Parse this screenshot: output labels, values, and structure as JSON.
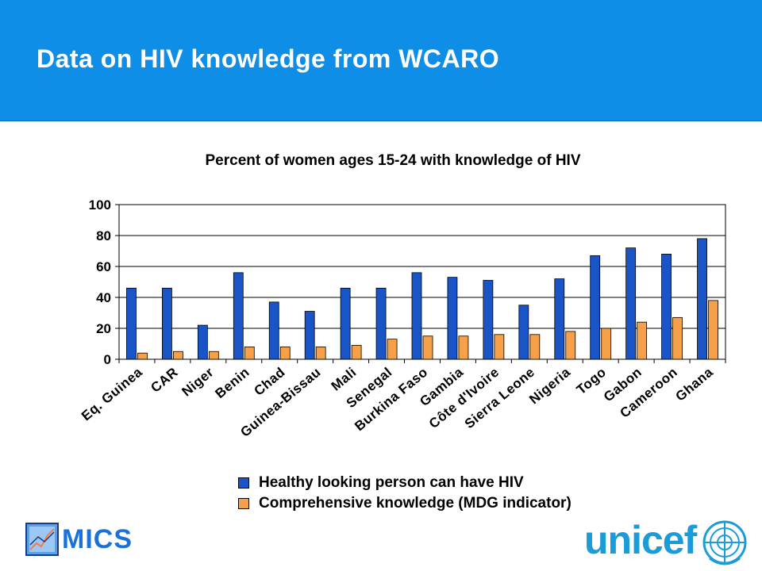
{
  "header": {
    "title": "Data on HIV knowledge from WCARO"
  },
  "colors": {
    "header_bg": "#0f8ee8",
    "series1": "#1a55c8",
    "series2": "#f7a04a",
    "unicef": "#1b9bd8",
    "mics": "#1a72d8"
  },
  "logos": {
    "mics": "MICS",
    "unicef": "unicef"
  },
  "icons": {
    "mics": "mics-chart-icon",
    "unicef": "un-emblem-icon"
  },
  "chart_data": {
    "type": "bar",
    "title": "Percent of women ages 15-24 with knowledge of HIV",
    "xlabel": "",
    "ylabel": "",
    "ylim": [
      0,
      100
    ],
    "yticks": [
      "0",
      "20",
      "40",
      "60",
      "80",
      "100"
    ],
    "grid": true,
    "legend_position": "bottom",
    "categories": [
      "Eq. Guinea",
      "CAR",
      "Niger",
      "Benin",
      "Chad",
      "Guinea-Bissau",
      "Mali",
      "Senegal",
      "Burkina Faso",
      "Gambia",
      "Côte d'Ivoire",
      "Sierra Leone",
      "Nigeria",
      "Togo",
      "Gabon",
      "Cameroon",
      "Ghana"
    ],
    "series": [
      {
        "name": "Healthy looking person can have HIV",
        "values": [
          46,
          46,
          22,
          56,
          37,
          31,
          46,
          46,
          56,
          53,
          51,
          35,
          52,
          67,
          72,
          68,
          78
        ]
      },
      {
        "name": "Comprehensive knowledge (MDG indicator)",
        "values": [
          4,
          5,
          5,
          8,
          8,
          8,
          9,
          13,
          15,
          15,
          16,
          16,
          18,
          20,
          24,
          27,
          38
        ]
      }
    ]
  }
}
